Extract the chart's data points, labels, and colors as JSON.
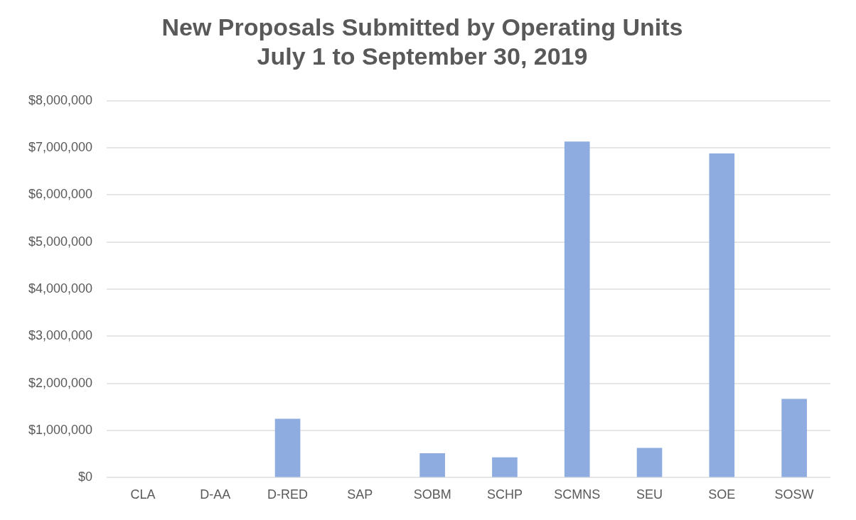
{
  "chart_data": {
    "type": "bar",
    "title": "New Proposals Submitted by Operating Units",
    "subtitle": "July 1 to September 30, 2019",
    "categories": [
      "CLA",
      "D-AA",
      "D-RED",
      "SAP",
      "SOBM",
      "SCHP",
      "SCMNS",
      "SEU",
      "SOE",
      "SOSW"
    ],
    "values": [
      0,
      0,
      1250000,
      0,
      520000,
      430000,
      7130000,
      630000,
      6880000,
      1670000
    ],
    "color": "#8eacdf",
    "ylim": [
      0,
      8000000
    ],
    "yticks": [
      {
        "value": 0,
        "label": "$0"
      },
      {
        "value": 1000000,
        "label": "$1,000,000"
      },
      {
        "value": 2000000,
        "label": "$2,000,000"
      },
      {
        "value": 3000000,
        "label": "$3,000,000"
      },
      {
        "value": 4000000,
        "label": "$4,000,000"
      },
      {
        "value": 5000000,
        "label": "$5,000,000"
      },
      {
        "value": 6000000,
        "label": "$6,000,000"
      },
      {
        "value": 7000000,
        "label": "$7,000,000"
      },
      {
        "value": 8000000,
        "label": "$8,000,000"
      }
    ],
    "grid": "y"
  }
}
